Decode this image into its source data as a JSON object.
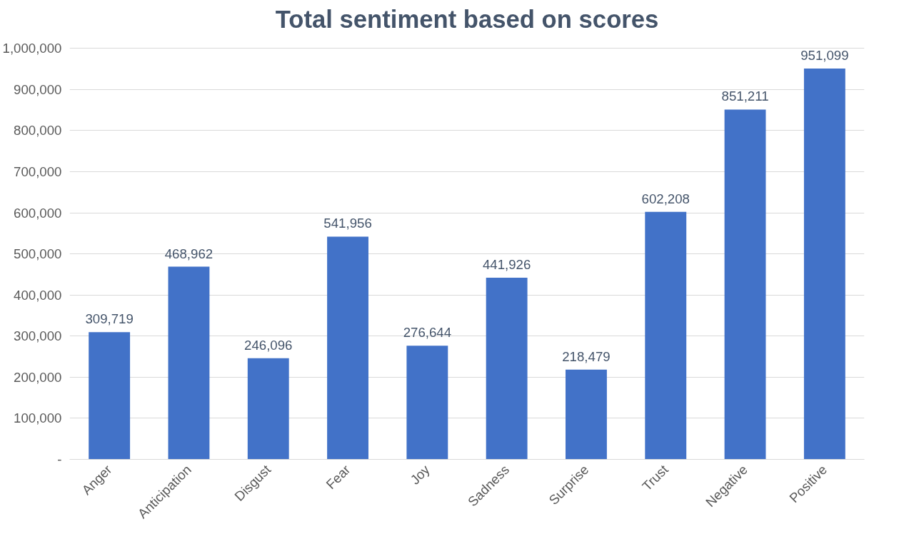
{
  "chart_data": {
    "type": "bar",
    "title": "Total sentiment based on scores",
    "categories": [
      "Anger",
      "Anticipation",
      "Disgust",
      "Fear",
      "Joy",
      "Sadness",
      "Surprise",
      "Trust",
      "Negative",
      "Positive"
    ],
    "values": [
      309719,
      468962,
      246096,
      541956,
      276644,
      441926,
      218479,
      602208,
      851211,
      951099
    ],
    "value_labels": [
      "309,719",
      "468,962",
      "246,096",
      "541,956",
      "276,644",
      "441,926",
      "218,479",
      "602,208",
      "851,211",
      "951,099"
    ],
    "color": "#4272c8",
    "ylim": [
      0,
      1000000
    ],
    "yticks": [
      {
        "value": 0,
        "label": "-"
      },
      {
        "value": 100000,
        "label": "100,000"
      },
      {
        "value": 200000,
        "label": "200,000"
      },
      {
        "value": 300000,
        "label": "300,000"
      },
      {
        "value": 400000,
        "label": "400,000"
      },
      {
        "value": 500000,
        "label": "500,000"
      },
      {
        "value": 600000,
        "label": "600,000"
      },
      {
        "value": 700000,
        "label": "700,000"
      },
      {
        "value": 800000,
        "label": "800,000"
      },
      {
        "value": 900000,
        "label": "900,000"
      },
      {
        "value": 1000000,
        "label": "1,000,000"
      }
    ],
    "grid": "y"
  }
}
